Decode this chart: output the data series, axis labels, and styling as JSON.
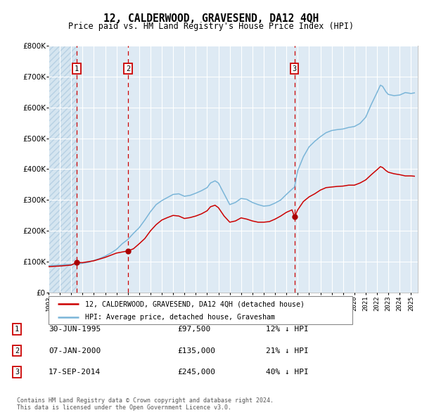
{
  "title": "12, CALDERWOOD, GRAVESEND, DA12 4QH",
  "subtitle": "Price paid vs. HM Land Registry's House Price Index (HPI)",
  "legend_line1": "12, CALDERWOOD, GRAVESEND, DA12 4QH (detached house)",
  "legend_line2": "HPI: Average price, detached house, Gravesham",
  "footer1": "Contains HM Land Registry data © Crown copyright and database right 2024.",
  "footer2": "This data is licensed under the Open Government Licence v3.0.",
  "transactions": [
    {
      "num": 1,
      "date": "30-JUN-1995",
      "price": 97500,
      "price_str": "£97,500",
      "pct": "12%",
      "dir": "↓"
    },
    {
      "num": 2,
      "date": "07-JAN-2000",
      "price": 135000,
      "price_str": "£135,000",
      "pct": "21%",
      "dir": "↓"
    },
    {
      "num": 3,
      "date": "17-SEP-2014",
      "price": 245000,
      "price_str": "£245,000",
      "pct": "40%",
      "dir": "↓"
    }
  ],
  "transaction_dates_decimal": [
    1995.496,
    2000.019,
    2014.716
  ],
  "transaction_prices": [
    97500,
    135000,
    245000
  ],
  "hpi_color": "#7ab5d8",
  "price_color": "#cc0000",
  "marker_color": "#aa0000",
  "bg_hatched_color": "#d5e5f0",
  "bg_main_color": "#deeaf4",
  "grid_color": "#ffffff",
  "ylim": [
    0,
    800000
  ],
  "xlim_start": 1993.0,
  "xlim_end": 2025.6,
  "hatch_region_end": 1995.496,
  "hpi_data": [
    [
      1993.0,
      87000
    ],
    [
      1993.5,
      88000
    ],
    [
      1994.0,
      89000
    ],
    [
      1994.5,
      90500
    ],
    [
      1995.0,
      91000
    ],
    [
      1995.5,
      92500
    ],
    [
      1996.0,
      95000
    ],
    [
      1996.5,
      98000
    ],
    [
      1997.0,
      104000
    ],
    [
      1997.5,
      110000
    ],
    [
      1998.0,
      118000
    ],
    [
      1998.5,
      128000
    ],
    [
      1999.0,
      140000
    ],
    [
      1999.5,
      158000
    ],
    [
      2000.0,
      172000
    ],
    [
      2000.5,
      192000
    ],
    [
      2001.0,
      210000
    ],
    [
      2001.5,
      235000
    ],
    [
      2002.0,
      262000
    ],
    [
      2002.5,
      285000
    ],
    [
      2003.0,
      298000
    ],
    [
      2003.5,
      308000
    ],
    [
      2004.0,
      318000
    ],
    [
      2004.5,
      320000
    ],
    [
      2005.0,
      312000
    ],
    [
      2005.5,
      315000
    ],
    [
      2006.0,
      322000
    ],
    [
      2006.5,
      330000
    ],
    [
      2007.0,
      340000
    ],
    [
      2007.3,
      355000
    ],
    [
      2007.7,
      362000
    ],
    [
      2008.0,
      355000
    ],
    [
      2008.5,
      320000
    ],
    [
      2009.0,
      285000
    ],
    [
      2009.5,
      292000
    ],
    [
      2010.0,
      305000
    ],
    [
      2010.5,
      302000
    ],
    [
      2011.0,
      292000
    ],
    [
      2011.5,
      285000
    ],
    [
      2012.0,
      280000
    ],
    [
      2012.5,
      282000
    ],
    [
      2013.0,
      290000
    ],
    [
      2013.5,
      300000
    ],
    [
      2014.0,
      318000
    ],
    [
      2014.5,
      335000
    ],
    [
      2014.716,
      342000
    ],
    [
      2015.0,
      395000
    ],
    [
      2015.5,
      440000
    ],
    [
      2016.0,
      472000
    ],
    [
      2016.5,
      490000
    ],
    [
      2017.0,
      505000
    ],
    [
      2017.5,
      518000
    ],
    [
      2018.0,
      525000
    ],
    [
      2018.5,
      528000
    ],
    [
      2019.0,
      530000
    ],
    [
      2019.5,
      535000
    ],
    [
      2020.0,
      538000
    ],
    [
      2020.5,
      548000
    ],
    [
      2021.0,
      568000
    ],
    [
      2021.5,
      610000
    ],
    [
      2022.0,
      648000
    ],
    [
      2022.3,
      672000
    ],
    [
      2022.5,
      668000
    ],
    [
      2022.8,
      650000
    ],
    [
      2023.0,
      642000
    ],
    [
      2023.5,
      638000
    ],
    [
      2024.0,
      640000
    ],
    [
      2024.5,
      648000
    ],
    [
      2025.0,
      645000
    ],
    [
      2025.3,
      647000
    ]
  ],
  "price_data": [
    [
      1993.0,
      84000
    ],
    [
      1994.0,
      86000
    ],
    [
      1995.0,
      89000
    ],
    [
      1995.496,
      97500
    ],
    [
      1996.0,
      97000
    ],
    [
      1997.0,
      103000
    ],
    [
      1998.0,
      114000
    ],
    [
      1999.0,
      128000
    ],
    [
      2000.019,
      135000
    ],
    [
      2000.5,
      142000
    ],
    [
      2001.0,
      158000
    ],
    [
      2001.5,
      175000
    ],
    [
      2002.0,
      200000
    ],
    [
      2002.5,
      220000
    ],
    [
      2003.0,
      235000
    ],
    [
      2003.5,
      243000
    ],
    [
      2004.0,
      250000
    ],
    [
      2004.5,
      248000
    ],
    [
      2005.0,
      240000
    ],
    [
      2005.5,
      243000
    ],
    [
      2006.0,
      248000
    ],
    [
      2006.5,
      255000
    ],
    [
      2007.0,
      265000
    ],
    [
      2007.3,
      278000
    ],
    [
      2007.7,
      283000
    ],
    [
      2008.0,
      275000
    ],
    [
      2008.5,
      248000
    ],
    [
      2009.0,
      228000
    ],
    [
      2009.5,
      232000
    ],
    [
      2010.0,
      242000
    ],
    [
      2010.5,
      238000
    ],
    [
      2011.0,
      232000
    ],
    [
      2011.5,
      228000
    ],
    [
      2012.0,
      228000
    ],
    [
      2012.5,
      230000
    ],
    [
      2013.0,
      238000
    ],
    [
      2013.5,
      248000
    ],
    [
      2014.0,
      260000
    ],
    [
      2014.5,
      268000
    ],
    [
      2014.716,
      245000
    ],
    [
      2015.0,
      268000
    ],
    [
      2015.5,
      295000
    ],
    [
      2016.0,
      310000
    ],
    [
      2016.5,
      320000
    ],
    [
      2017.0,
      332000
    ],
    [
      2017.5,
      340000
    ],
    [
      2018.0,
      342000
    ],
    [
      2018.5,
      344000
    ],
    [
      2019.0,
      345000
    ],
    [
      2019.5,
      348000
    ],
    [
      2020.0,
      348000
    ],
    [
      2020.5,
      355000
    ],
    [
      2021.0,
      365000
    ],
    [
      2021.5,
      382000
    ],
    [
      2022.0,
      398000
    ],
    [
      2022.3,
      408000
    ],
    [
      2022.5,
      405000
    ],
    [
      2022.8,
      395000
    ],
    [
      2023.0,
      390000
    ],
    [
      2023.5,
      385000
    ],
    [
      2024.0,
      382000
    ],
    [
      2024.5,
      378000
    ],
    [
      2025.0,
      378000
    ],
    [
      2025.3,
      377000
    ]
  ]
}
